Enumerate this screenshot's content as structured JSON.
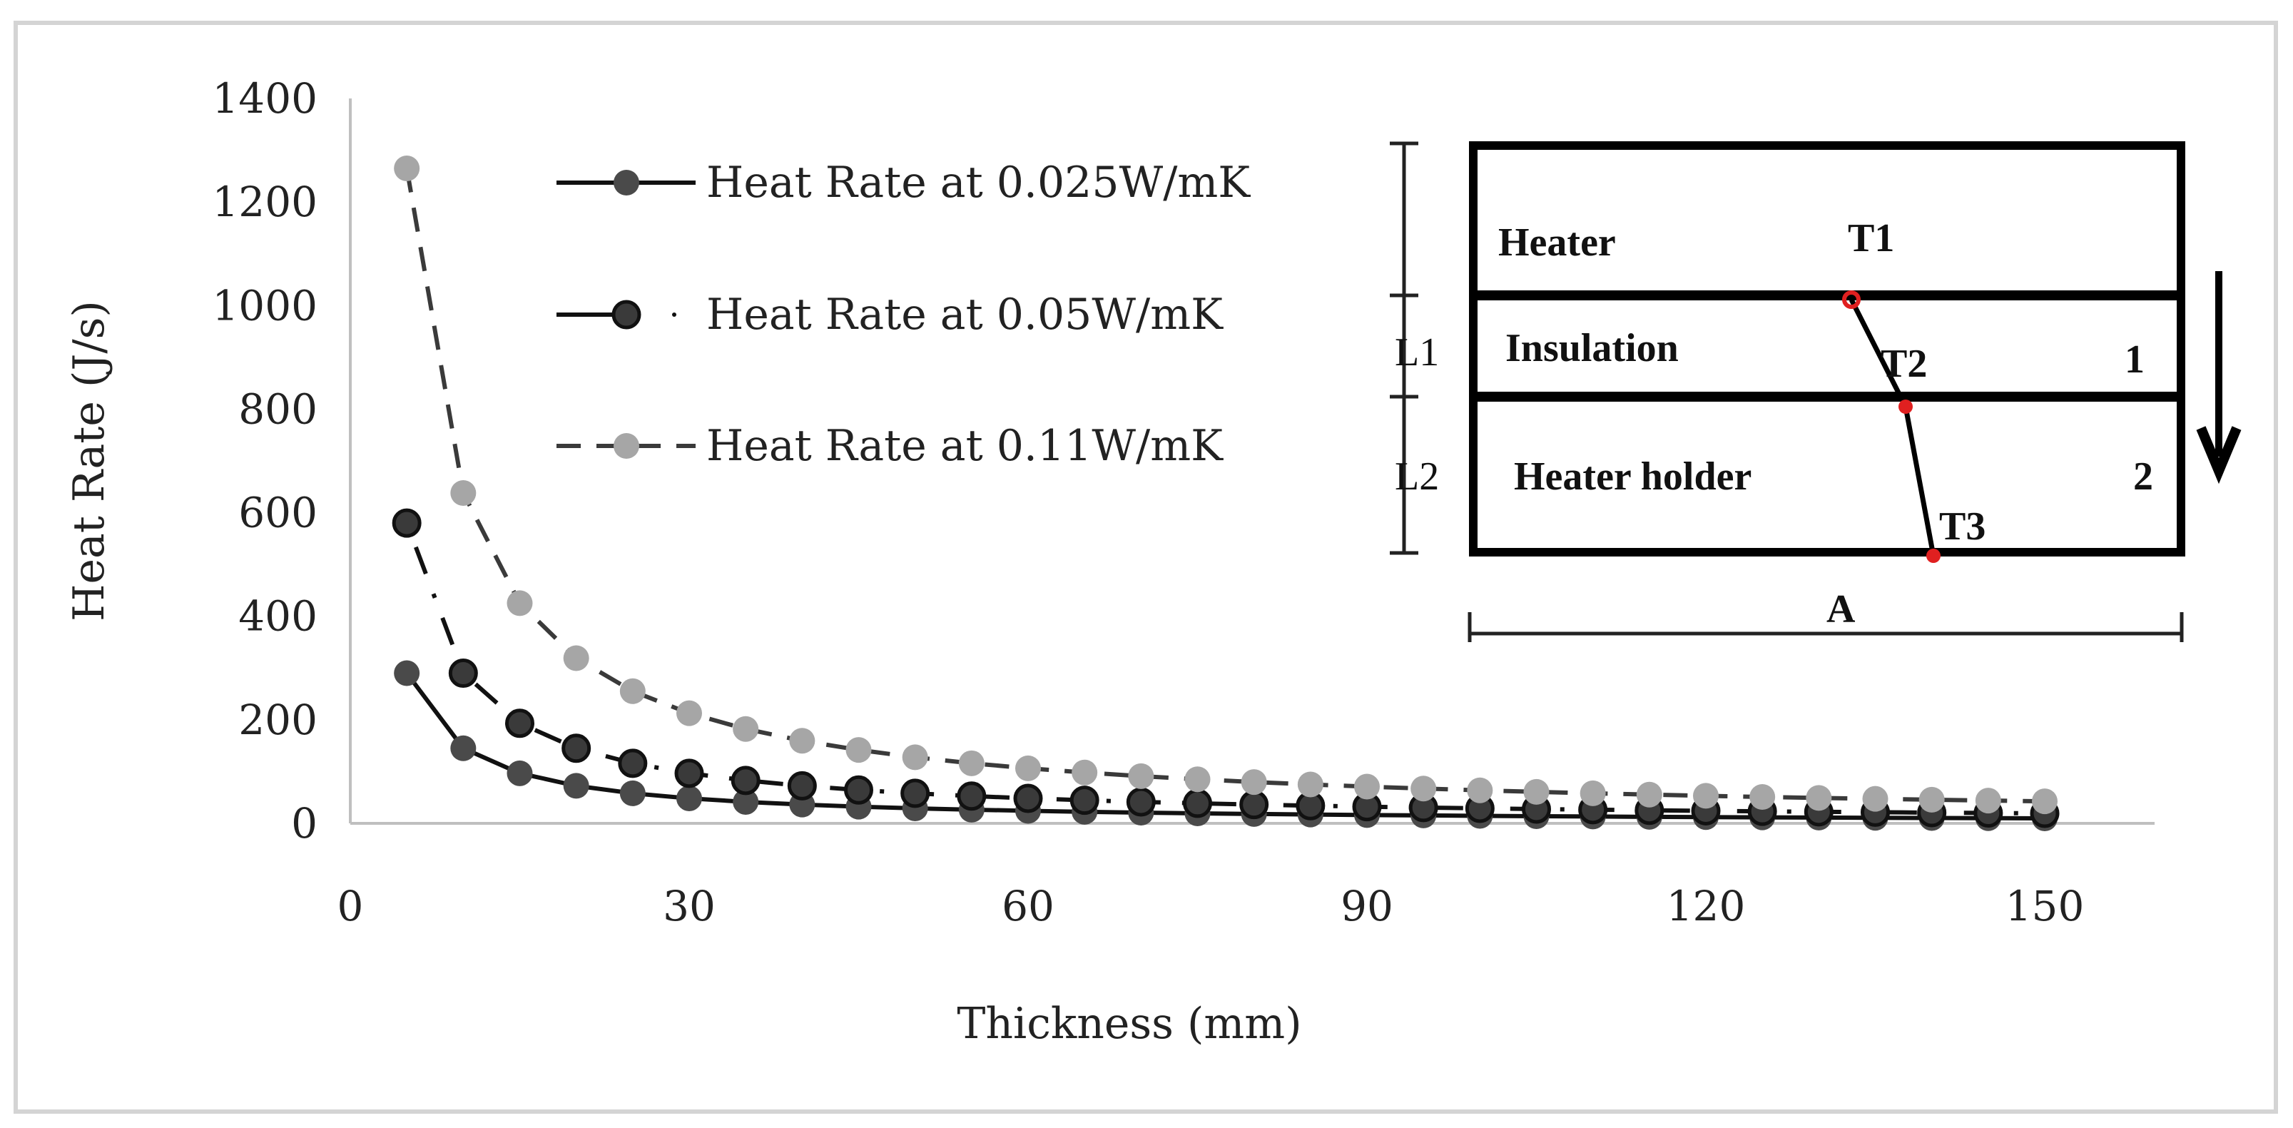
{
  "chart_data": {
    "type": "line",
    "title": "",
    "xlabel": "Thickness (mm)",
    "ylabel": "Heat Rate (J/s)",
    "xlim": [
      0,
      160
    ],
    "ylim": [
      0,
      1400
    ],
    "xticks": [
      "0",
      "30",
      "60",
      "90",
      "120",
      "150"
    ],
    "xtick_values": [
      0,
      30,
      60,
      90,
      120,
      150
    ],
    "yticks": [
      "0",
      "200",
      "400",
      "600",
      "800",
      "1000",
      "1200",
      "1400"
    ],
    "ytick_values": [
      0,
      200,
      400,
      600,
      800,
      1000,
      1200,
      1400
    ],
    "grid": false,
    "legend_position": "top-center",
    "x": [
      5,
      10,
      15,
      20,
      25,
      30,
      35,
      40,
      45,
      50,
      55,
      60,
      65,
      70,
      75,
      80,
      85,
      90,
      95,
      100,
      105,
      110,
      115,
      120,
      125,
      130,
      135,
      140,
      145,
      150
    ],
    "series": [
      {
        "name": "Heat Rate at 0.025W/mK",
        "style": "solid",
        "color": "#4a4a4a",
        "values": [
          290,
          145,
          96.7,
          72.5,
          58,
          48.3,
          41.4,
          36.3,
          32.2,
          29,
          26.4,
          24.2,
          22.3,
          20.7,
          19.3,
          18.1,
          17.1,
          16.1,
          15.3,
          14.5,
          13.8,
          13.2,
          12.6,
          12.1,
          11.6,
          11.2,
          10.7,
          10.4,
          10,
          9.7
        ]
      },
      {
        "name": "Heat Rate at 0.05W/mK",
        "style": "dash-dot",
        "color": "#3a3a3a",
        "values": [
          580,
          290,
          193.3,
          145,
          116,
          96.7,
          82.9,
          72.5,
          64.4,
          58,
          52.7,
          48.3,
          44.6,
          41.4,
          38.7,
          36.3,
          34.1,
          32.2,
          30.5,
          29,
          27.6,
          26.4,
          25.2,
          24.2,
          23.2,
          22.3,
          21.5,
          20.7,
          20,
          19.3
        ]
      },
      {
        "name": "Heat Rate at 0.11W/mK",
        "style": "dashed",
        "color": "#a6a6a6",
        "values": [
          1265,
          638,
          425.3,
          319,
          255.2,
          212.7,
          182.3,
          159.5,
          141.8,
          127.6,
          116,
          106.3,
          98.2,
          91.1,
          85.1,
          79.8,
          75.1,
          70.9,
          67.2,
          63.8,
          60.8,
          58,
          55.5,
          53.2,
          51,
          49.1,
          47.3,
          45.6,
          44,
          42.5
        ]
      }
    ]
  },
  "inset": {
    "layers": [
      "Heater",
      "Insulation",
      "Heater holder"
    ],
    "layer_numbers": [
      "1",
      "2"
    ],
    "temps": [
      "T1",
      "T2",
      "T3"
    ],
    "lengths": [
      "L1",
      "L2"
    ],
    "area": "A"
  }
}
